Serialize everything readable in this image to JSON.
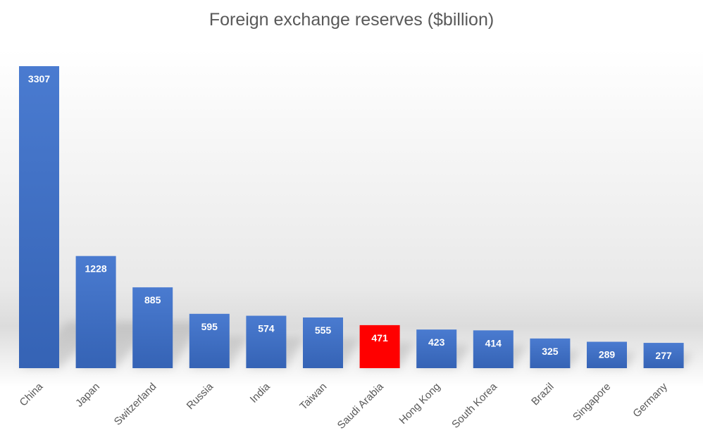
{
  "chart_data": {
    "type": "bar",
    "title": "Foreign exchange reserves ($billion)",
    "xlabel": "",
    "ylabel": "",
    "categories": [
      "China",
      "Japan",
      "Switzerland",
      "Russia",
      "India",
      "Taiwan",
      "Saudi Arabia",
      "Hong Kong",
      "South Korea",
      "Brazil",
      "Singapore",
      "Germany"
    ],
    "values": [
      3307,
      1228,
      885,
      595,
      574,
      555,
      471,
      423,
      414,
      325,
      289,
      277
    ],
    "ylim": [
      0,
      3307
    ],
    "grid": false,
    "legend": "none",
    "data_labels": true,
    "colors": {
      "bar": "#4472c4",
      "bar_dark": "#2f5597",
      "highlight": "#ff0000",
      "highlight_category": "Saudi Arabia",
      "title": "#595959",
      "tick": "#595959"
    }
  }
}
